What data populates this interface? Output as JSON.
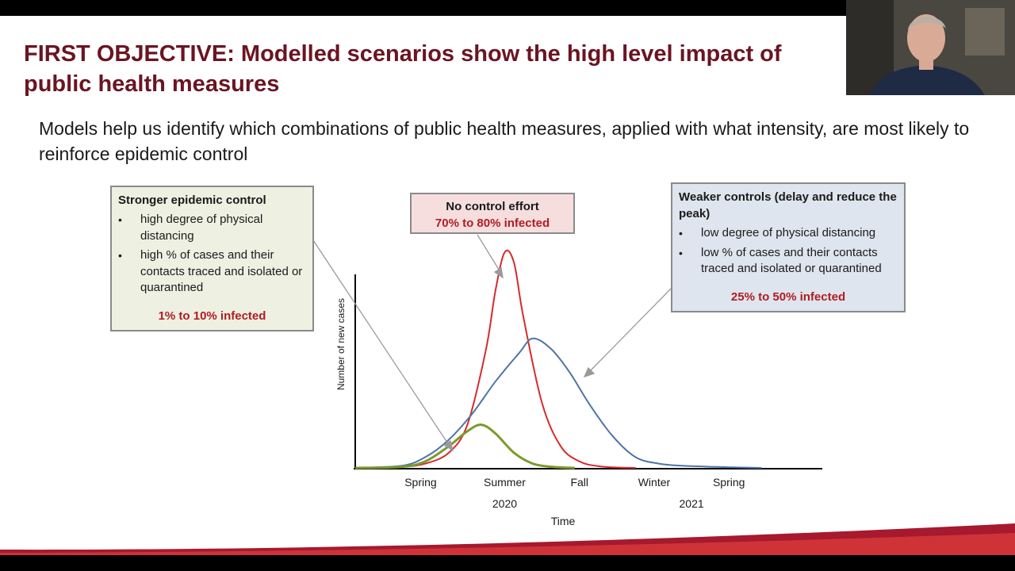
{
  "slide": {
    "title": "FIRST OBJECTIVE: Modelled scenarios show the high level impact of public health measures",
    "subtitle": "Models help us identify which combinations of public health measures, applied with what intensity, are most likely to reinforce epidemic control"
  },
  "boxes": {
    "stronger": {
      "heading": "Stronger epidemic control",
      "bullets": [
        "high degree of physical distancing",
        "high % of cases and their contacts traced and isolated or quarantined"
      ],
      "result": "1% to 10% infected"
    },
    "none": {
      "heading": "No control effort",
      "result": "70% to 80% infected"
    },
    "weaker": {
      "heading": "Weaker controls (delay and reduce the peak)",
      "bullets": [
        "low degree of physical distancing",
        "low % of cases and their contacts traced and isolated or quarantined"
      ],
      "result": "25% to 50% infected"
    }
  },
  "chart_data": {
    "type": "line",
    "xlabel": "Time",
    "ylabel": "Number of new cases",
    "x_ticks": [
      {
        "label": "Spring",
        "x": 0.14
      },
      {
        "label": "Summer",
        "x": 0.32
      },
      {
        "label": "Fall",
        "x": 0.48
      },
      {
        "label": "Winter",
        "x": 0.64
      },
      {
        "label": "Spring",
        "x": 0.8
      }
    ],
    "year_labels": [
      {
        "label": "2020",
        "x": 0.32
      },
      {
        "label": "2021",
        "x": 0.72
      }
    ],
    "series": [
      {
        "key": "none",
        "color": "#d62b2b",
        "x": [
          0,
          0.1,
          0.15,
          0.2,
          0.24,
          0.28,
          0.3,
          0.32,
          0.34,
          0.36,
          0.4,
          0.44,
          0.48,
          0.52,
          0.56,
          0.6
        ],
        "y": [
          0,
          0.005,
          0.02,
          0.07,
          0.2,
          0.55,
          0.82,
          1.0,
          0.95,
          0.7,
          0.3,
          0.1,
          0.03,
          0.008,
          0.002,
          0
        ]
      },
      {
        "key": "weaker",
        "color": "#4f74a5",
        "x": [
          0,
          0.1,
          0.15,
          0.2,
          0.25,
          0.3,
          0.35,
          0.38,
          0.42,
          0.46,
          0.5,
          0.55,
          0.6,
          0.65,
          0.7,
          0.8,
          0.87
        ],
        "y": [
          0,
          0.01,
          0.05,
          0.13,
          0.25,
          0.4,
          0.53,
          0.6,
          0.55,
          0.44,
          0.3,
          0.15,
          0.05,
          0.02,
          0.01,
          0.003,
          0
        ]
      },
      {
        "key": "stronger",
        "color": "#7a9a2c",
        "x": [
          0,
          0.1,
          0.15,
          0.2,
          0.24,
          0.27,
          0.3,
          0.34,
          0.38,
          0.42,
          0.47
        ],
        "y": [
          0,
          0.005,
          0.03,
          0.1,
          0.17,
          0.2,
          0.16,
          0.07,
          0.02,
          0.005,
          0
        ]
      }
    ]
  },
  "colors": {
    "title": "#6b1422",
    "result": "#b01c22"
  },
  "webcam": {
    "icon": "presenter-video"
  }
}
